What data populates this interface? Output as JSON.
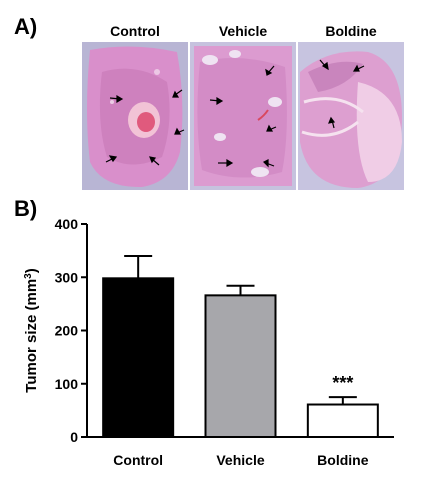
{
  "panel_a": {
    "label": "A)",
    "images": [
      {
        "caption": "Control",
        "image": "histology-section-control"
      },
      {
        "caption": "Vehicle",
        "image": "histology-section-vehicle"
      },
      {
        "caption": "Boldine",
        "image": "histology-section-boldine"
      }
    ]
  },
  "panel_b": {
    "label": "B)"
  },
  "chart_data": {
    "type": "bar",
    "categories": [
      "Control",
      "Vehicle",
      "Boldine"
    ],
    "values": [
      298,
      266,
      61
    ],
    "errors": [
      42,
      18,
      14
    ],
    "bar_colors": [
      "#000000",
      "#a7a7ab",
      "#ffffff"
    ],
    "annotations": [
      {
        "category": "Boldine",
        "text": "***"
      }
    ],
    "ylabel": "Tumor size (mm",
    "ylabel_superscript": "3",
    "ylabel_suffix": ")",
    "ylim": [
      0,
      400
    ],
    "yticks": [
      "0",
      "100",
      "200",
      "300",
      "400"
    ],
    "grid": false
  }
}
